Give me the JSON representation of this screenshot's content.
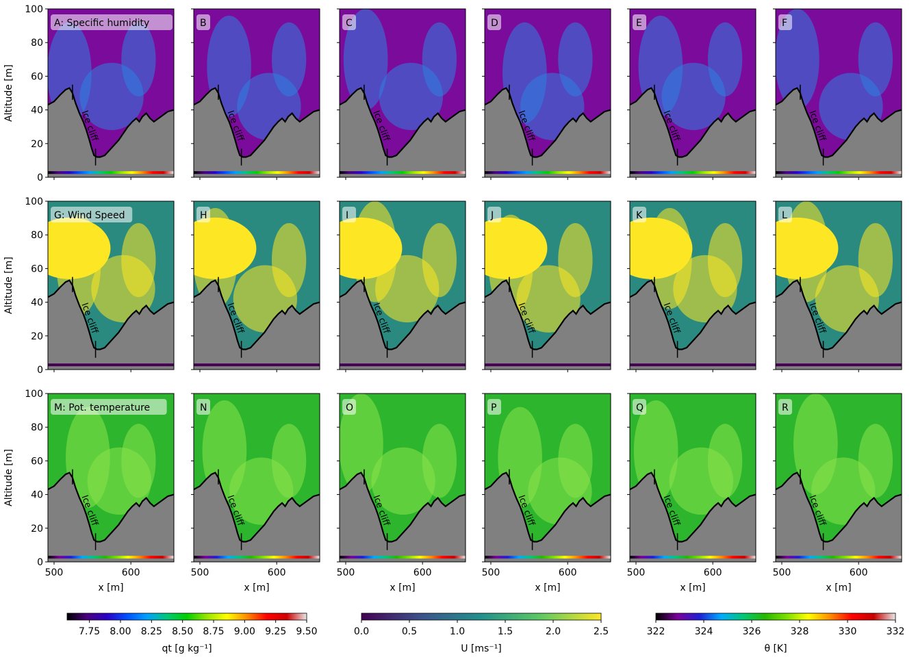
{
  "figure": {
    "ylabel": "Altitude [m]",
    "xlabel": "x [m]",
    "annotation": "Ice cliff"
  },
  "chart_data": [
    {
      "type": "heatmap",
      "row": 0,
      "variable": "Specific humidity",
      "panels": [
        "A: Specific humidity",
        "B",
        "C",
        "D",
        "E",
        "F"
      ],
      "x_ticks": [
        500,
        600
      ],
      "y_ticks": [
        0,
        20,
        40,
        60,
        80,
        100
      ],
      "xlim": [
        492,
        656
      ],
      "ylim": [
        0,
        100
      ],
      "colorbar": {
        "label": "qt [g kg⁻¹]",
        "ticks": [
          "7.75",
          "8.00",
          "8.25",
          "8.50",
          "8.75",
          "9.00",
          "9.25",
          "9.50"
        ],
        "range": [
          7.57,
          9.5
        ],
        "stops": [
          "#000000",
          "#4a007f",
          "#2a00c8",
          "#0050ff",
          "#00a0ff",
          "#00c878",
          "#00d000",
          "#96e600",
          "#ffff00",
          "#ff8c00",
          "#ff0000",
          "#d00000",
          "#e8e8e8"
        ]
      },
      "background": "#7b0c9b",
      "plume": "#2e7fe0"
    },
    {
      "type": "heatmap",
      "row": 1,
      "variable": "Wind Speed",
      "panels": [
        "G: Wind Speed",
        "H",
        "I",
        "J",
        "K",
        "L"
      ],
      "x_ticks": [
        500,
        600
      ],
      "y_ticks": [
        0,
        20,
        40,
        60,
        80,
        100
      ],
      "xlim": [
        492,
        656
      ],
      "ylim": [
        0,
        100
      ],
      "colorbar": {
        "label": "U [ms⁻¹]",
        "ticks": [
          "0.0",
          "0.5",
          "1.0",
          "1.5",
          "2.0",
          "2.5"
        ],
        "range": [
          0,
          2.5
        ],
        "stops": [
          "#440154",
          "#3b528b",
          "#21918c",
          "#5ec962",
          "#fde725"
        ]
      },
      "background": "#2a8a7f",
      "plume": "#fde725"
    },
    {
      "type": "heatmap",
      "row": 2,
      "variable": "Pot. temperature",
      "panels": [
        "M: Pot. temperature",
        "N",
        "O",
        "P",
        "Q",
        "R"
      ],
      "x_ticks": [
        500,
        600
      ],
      "y_ticks": [
        0,
        20,
        40,
        60,
        80,
        100
      ],
      "xlim": [
        492,
        656
      ],
      "ylim": [
        0,
        100
      ],
      "colorbar": {
        "label": "θ [K]",
        "ticks": [
          "322",
          "324",
          "326",
          "328",
          "330",
          "332"
        ],
        "range": [
          322,
          332
        ],
        "stops": [
          "#000000",
          "#7b0099",
          "#1f1fd6",
          "#00aaff",
          "#00c878",
          "#26b800",
          "#7ae000",
          "#ffff00",
          "#ff8c00",
          "#ff0000",
          "#c80000",
          "#e8e8e8"
        ]
      },
      "background": "#2db52d",
      "plume": "#8be34a"
    }
  ]
}
